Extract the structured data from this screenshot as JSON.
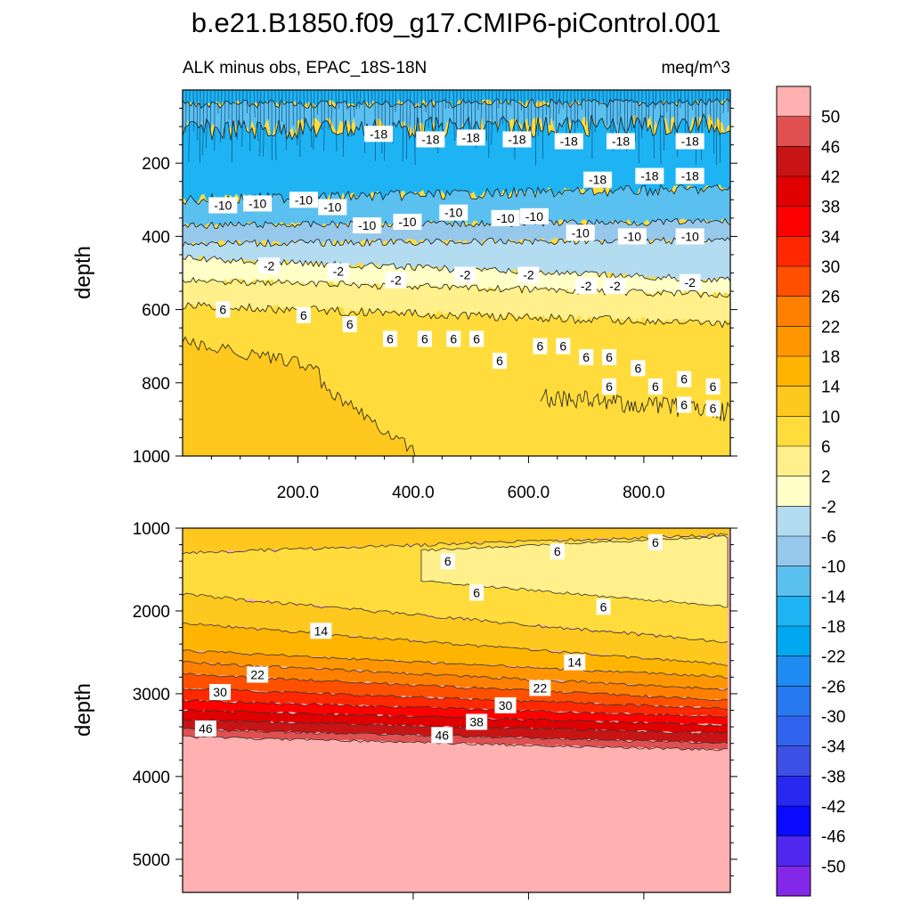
{
  "figure": {
    "title": "b.e21.B1850.f09_g17.CMIP6-piControl.001",
    "subtitle_left": "ALK minus obs, EPAC_18S-18N",
    "subtitle_right": "meq/m^3"
  },
  "chart_data": [
    {
      "type": "contour",
      "panel": "top",
      "xlabel": "",
      "ylabel": "depth",
      "xlim": [
        0,
        950
      ],
      "ylim": [
        1000,
        0
      ],
      "x_ticks": [
        200,
        400,
        600,
        800
      ],
      "x_tick_labels": [
        "200.0",
        "400.0",
        "600.0",
        "800.0"
      ],
      "y_ticks": [
        200,
        400,
        600,
        800,
        1000
      ],
      "y_tick_labels": [
        "200",
        "400",
        "600",
        "800",
        "1000"
      ],
      "bands": [
        {
          "lo": -18,
          "hi": -14,
          "y_top": 0,
          "y_bot": 40
        },
        {
          "lo": -14,
          "hi": -10,
          "y_top": 40,
          "y_bot": 100
        },
        {
          "lo": -18,
          "hi": -14,
          "y_top": 100,
          "y_bot": 280
        },
        {
          "lo": -14,
          "hi": -10,
          "y_top": 280,
          "y_bot": 360
        },
        {
          "lo": -10,
          "hi": -6,
          "y_top": 360,
          "y_bot": 410
        },
        {
          "lo": -6,
          "hi": -2,
          "y_top": 410,
          "y_bot": 460
        },
        {
          "lo": -2,
          "hi": 2,
          "y_top": 460,
          "y_bot": 530
        },
        {
          "lo": 2,
          "hi": 6,
          "y_top": 530,
          "y_bot": 640
        },
        {
          "lo": 6,
          "hi": 10,
          "y_top": 640,
          "y_bot": 1000
        },
        {
          "lo": 10,
          "hi": 14,
          "region": "lower-left",
          "y_top": 700,
          "y_bot": 1000
        }
      ],
      "contour_labels": [
        {
          "value": "-18",
          "x": 340,
          "y": 120
        },
        {
          "value": "-18",
          "x": 430,
          "y": 135
        },
        {
          "value": "-18",
          "x": 500,
          "y": 130
        },
        {
          "value": "-18",
          "x": 580,
          "y": 135
        },
        {
          "value": "-18",
          "x": 670,
          "y": 140
        },
        {
          "value": "-18",
          "x": 760,
          "y": 140
        },
        {
          "value": "-18",
          "x": 880,
          "y": 140
        },
        {
          "value": "-18",
          "x": 720,
          "y": 245
        },
        {
          "value": "-18",
          "x": 810,
          "y": 235
        },
        {
          "value": "-18",
          "x": 880,
          "y": 235
        },
        {
          "value": "-10",
          "x": 70,
          "y": 315
        },
        {
          "value": "-10",
          "x": 130,
          "y": 310
        },
        {
          "value": "-10",
          "x": 210,
          "y": 300
        },
        {
          "value": "-10",
          "x": 260,
          "y": 320
        },
        {
          "value": "-10",
          "x": 320,
          "y": 370
        },
        {
          "value": "-10",
          "x": 390,
          "y": 360
        },
        {
          "value": "-10",
          "x": 470,
          "y": 335
        },
        {
          "value": "-10",
          "x": 560,
          "y": 350
        },
        {
          "value": "-10",
          "x": 610,
          "y": 345
        },
        {
          "value": "-10",
          "x": 690,
          "y": 390
        },
        {
          "value": "-10",
          "x": 780,
          "y": 400
        },
        {
          "value": "-10",
          "x": 880,
          "y": 400
        },
        {
          "value": "-2",
          "x": 150,
          "y": 480
        },
        {
          "value": "-2",
          "x": 270,
          "y": 495
        },
        {
          "value": "-2",
          "x": 370,
          "y": 520
        },
        {
          "value": "-2",
          "x": 490,
          "y": 505
        },
        {
          "value": "-2",
          "x": 600,
          "y": 505
        },
        {
          "value": "-2",
          "x": 700,
          "y": 535
        },
        {
          "value": "-2",
          "x": 750,
          "y": 535
        },
        {
          "value": "-2",
          "x": 880,
          "y": 525
        },
        {
          "value": "6",
          "x": 70,
          "y": 600
        },
        {
          "value": "6",
          "x": 210,
          "y": 615
        },
        {
          "value": "6",
          "x": 290,
          "y": 640
        },
        {
          "value": "6",
          "x": 360,
          "y": 680
        },
        {
          "value": "6",
          "x": 420,
          "y": 680
        },
        {
          "value": "6",
          "x": 470,
          "y": 680
        },
        {
          "value": "6",
          "x": 510,
          "y": 680
        },
        {
          "value": "6",
          "x": 550,
          "y": 740
        },
        {
          "value": "6",
          "x": 620,
          "y": 700
        },
        {
          "value": "6",
          "x": 660,
          "y": 700
        },
        {
          "value": "6",
          "x": 700,
          "y": 730
        },
        {
          "value": "6",
          "x": 740,
          "y": 730
        },
        {
          "value": "6",
          "x": 790,
          "y": 760
        },
        {
          "value": "6",
          "x": 740,
          "y": 810
        },
        {
          "value": "6",
          "x": 820,
          "y": 810
        },
        {
          "value": "6",
          "x": 870,
          "y": 790
        },
        {
          "value": "6",
          "x": 920,
          "y": 810
        },
        {
          "value": "6",
          "x": 870,
          "y": 860
        },
        {
          "value": "6",
          "x": 920,
          "y": 870
        }
      ]
    },
    {
      "type": "contour",
      "panel": "bottom",
      "xlabel": "",
      "ylabel": "depth",
      "xlim": [
        0,
        950
      ],
      "ylim": [
        5400,
        1000
      ],
      "y_ticks": [
        1000,
        2000,
        3000,
        4000,
        5000
      ],
      "y_tick_labels": [
        "1000",
        "2000",
        "3000",
        "4000",
        "5000"
      ],
      "contour_labels": [
        {
          "value": "6",
          "x": 460,
          "y": 1400
        },
        {
          "value": "6",
          "x": 650,
          "y": 1280
        },
        {
          "value": "6",
          "x": 820,
          "y": 1170
        },
        {
          "value": "6",
          "x": 510,
          "y": 1780
        },
        {
          "value": "6",
          "x": 730,
          "y": 1950
        },
        {
          "value": "14",
          "x": 240,
          "y": 2240
        },
        {
          "value": "14",
          "x": 680,
          "y": 2620
        },
        {
          "value": "22",
          "x": 130,
          "y": 2770
        },
        {
          "value": "22",
          "x": 620,
          "y": 2930
        },
        {
          "value": "30",
          "x": 65,
          "y": 2980
        },
        {
          "value": "30",
          "x": 560,
          "y": 3140
        },
        {
          "value": "38",
          "x": 510,
          "y": 3340
        },
        {
          "value": "46",
          "x": 40,
          "y": 3420
        },
        {
          "value": "46",
          "x": 450,
          "y": 3500
        }
      ]
    }
  ],
  "colorbar": {
    "labels": [
      "50",
      "46",
      "42",
      "38",
      "34",
      "30",
      "26",
      "22",
      "18",
      "14",
      "10",
      "6",
      "2",
      "-2",
      "-6",
      "-10",
      "-14",
      "-18",
      "-22",
      "-26",
      "-30",
      "-34",
      "-38",
      "-42",
      "-46",
      "-50"
    ],
    "colors": [
      "#ffb0b0",
      "#e05050",
      "#c81414",
      "#e00000",
      "#ff0000",
      "#ff2800",
      "#ff5000",
      "#ff8000",
      "#ff9600",
      "#ffb400",
      "#ffc81e",
      "#ffdc3c",
      "#fff08c",
      "#ffffc8",
      "#b4dcf0",
      "#96c8ec",
      "#5ac0f0",
      "#1eb4f4",
      "#00a8f0",
      "#1e8cf0",
      "#2878f0",
      "#3264f0",
      "#3c50e6",
      "#2828f0",
      "#0a0aff",
      "#5028f0",
      "#8228e6"
    ]
  }
}
